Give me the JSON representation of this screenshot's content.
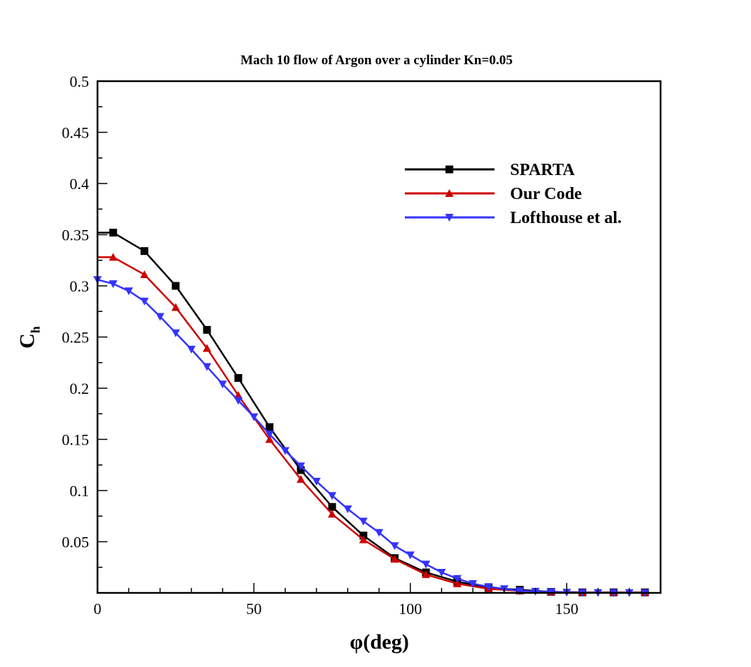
{
  "chart_data": {
    "type": "line",
    "title": "Mach 10 flow of Argon over a cylinder Kn=0.05",
    "xlabel": "φ(deg)",
    "ylabel": {
      "main": "C",
      "sub": "h"
    },
    "xlim": [
      0,
      180
    ],
    "ylim": [
      0,
      0.5
    ],
    "xticks": [
      {
        "v": 0,
        "label": "0"
      },
      {
        "v": 50,
        "label": "50"
      },
      {
        "v": 100,
        "label": "100"
      },
      {
        "v": 150,
        "label": "150"
      }
    ],
    "yticks": [
      {
        "v": 0.05,
        "label": "0.05"
      },
      {
        "v": 0.1,
        "label": "0.1"
      },
      {
        "v": 0.15,
        "label": "0.15"
      },
      {
        "v": 0.2,
        "label": "0.2"
      },
      {
        "v": 0.25,
        "label": "0.25"
      },
      {
        "v": 0.3,
        "label": "0.3"
      },
      {
        "v": 0.35,
        "label": "0.35"
      },
      {
        "v": 0.4,
        "label": "0.4"
      },
      {
        "v": 0.45,
        "label": "0.45"
      },
      {
        "v": 0.5,
        "label": "0.5"
      }
    ],
    "grid": false,
    "legend_position": "top-right",
    "series": [
      {
        "name": "SPARTA",
        "color": "#000000",
        "marker": "square",
        "line_start": [
          0,
          0.352
        ],
        "x": [
          5,
          15,
          25,
          35,
          45,
          55,
          65,
          75,
          85,
          95,
          105,
          115,
          125,
          135,
          145,
          155,
          165,
          175
        ],
        "y": [
          0.352,
          0.334,
          0.3,
          0.257,
          0.21,
          0.162,
          0.12,
          0.084,
          0.056,
          0.034,
          0.02,
          0.011,
          0.005,
          0.003,
          0.001,
          0.0005,
          0.0005,
          0.0005
        ]
      },
      {
        "name": "Our Code",
        "color": "#cc0000",
        "marker": "triangle-up",
        "line_start": [
          0,
          0.328
        ],
        "x": [
          5,
          15,
          25,
          35,
          45,
          55,
          65,
          75,
          85,
          95,
          105,
          115,
          125,
          135,
          145,
          155,
          165,
          175
        ],
        "y": [
          0.328,
          0.311,
          0.279,
          0.239,
          0.193,
          0.15,
          0.111,
          0.077,
          0.052,
          0.033,
          0.018,
          0.009,
          0.004,
          0.002,
          0.001,
          0.0005,
          0.0005,
          0.0005
        ]
      },
      {
        "name": "Lofthouse et al.",
        "color": "#3333ff",
        "marker": "triangle-down",
        "x": [
          0,
          5,
          10,
          15,
          20,
          25,
          30,
          35,
          40,
          45,
          50,
          55,
          60,
          65,
          70,
          75,
          80,
          85,
          90,
          95,
          100,
          105,
          110,
          115,
          120,
          125,
          130,
          135,
          140,
          145,
          150,
          155,
          160,
          165,
          170,
          175
        ],
        "y": [
          0.306,
          0.302,
          0.295,
          0.285,
          0.27,
          0.254,
          0.238,
          0.221,
          0.204,
          0.188,
          0.172,
          0.155,
          0.139,
          0.124,
          0.109,
          0.095,
          0.082,
          0.07,
          0.059,
          0.046,
          0.037,
          0.028,
          0.02,
          0.014,
          0.009,
          0.006,
          0.004,
          0.002,
          0.0015,
          0.001,
          0.0005,
          0.0003,
          0.0002,
          0.0001,
          0.0001,
          0.0001
        ]
      }
    ]
  }
}
